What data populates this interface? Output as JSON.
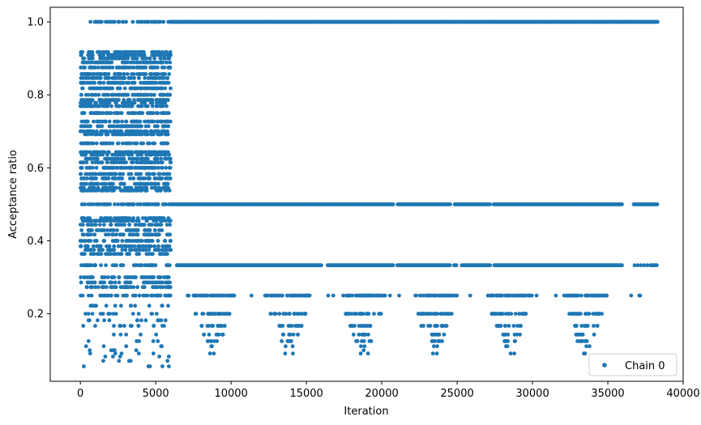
{
  "chart_data": {
    "type": "scatter",
    "title": "",
    "xlabel": "Iteration",
    "ylabel": "Acceptance ratio",
    "xlim": [
      -2000,
      40000
    ],
    "ylim": [
      0.015,
      1.04
    ],
    "xticks": [
      0,
      5000,
      10000,
      15000,
      20000,
      25000,
      30000,
      35000,
      40000
    ],
    "yticks": [
      0.2,
      0.4,
      0.6,
      0.8,
      1.0
    ],
    "ytick_labels": [
      "0.2",
      "0.4",
      "0.6",
      "0.8",
      "1.0"
    ],
    "grid": false,
    "legend_position": "bottom-right",
    "marker_color": "#1f77b4",
    "series": [
      {
        "name": "Chain 0",
        "x_range": [
          0,
          38300
        ],
        "phases": [
          {
            "x_range": [
              0,
              6000
            ],
            "bands": [
              {
                "y": 1.0,
                "sparse": true
              },
              {
                "y": 0.917
              },
              {
                "y": 0.909
              },
              {
                "y": 0.9
              },
              {
                "y": 0.889
              },
              {
                "y": 0.875
              },
              {
                "y": 0.857
              },
              {
                "y": 0.846
              },
              {
                "y": 0.833
              },
              {
                "y": 0.818
              },
              {
                "y": 0.8
              },
              {
                "y": 0.786
              },
              {
                "y": 0.778
              },
              {
                "y": 0.769
              },
              {
                "y": 0.75
              },
              {
                "y": 0.727
              },
              {
                "y": 0.714
              },
              {
                "y": 0.7
              },
              {
                "y": 0.692
              },
              {
                "y": 0.667
              },
              {
                "y": 0.643
              },
              {
                "y": 0.636
              },
              {
                "y": 0.625
              },
              {
                "y": 0.615
              },
              {
                "y": 0.6
              },
              {
                "y": 0.583
              },
              {
                "y": 0.571
              },
              {
                "y": 0.556
              },
              {
                "y": 0.545
              },
              {
                "y": 0.538
              },
              {
                "y": 0.5
              },
              {
                "y": 0.462
              },
              {
                "y": 0.455
              },
              {
                "y": 0.444
              },
              {
                "y": 0.429
              },
              {
                "y": 0.417
              },
              {
                "y": 0.4
              },
              {
                "y": 0.385
              },
              {
                "y": 0.375
              },
              {
                "y": 0.364
              },
              {
                "y": 0.333
              },
              {
                "y": 0.3
              },
              {
                "y": 0.286
              },
              {
                "y": 0.273
              },
              {
                "y": 0.25
              },
              {
                "y": 0.222
              },
              {
                "y": 0.2
              },
              {
                "y": 0.182
              },
              {
                "y": 0.167
              },
              {
                "y": 0.143
              },
              {
                "y": 0.125
              },
              {
                "y": 0.111
              },
              {
                "y": 0.1
              },
              {
                "y": 0.091
              },
              {
                "y": 0.083
              },
              {
                "y": 0.071
              },
              {
                "y": 0.056
              }
            ]
          },
          {
            "x_range": [
              6000,
              38300
            ],
            "bands": [
              {
                "y": 1.0,
                "coverage": "continuous"
              },
              {
                "y": 0.5,
                "coverage": "mostly-continuous"
              },
              {
                "y": 0.333,
                "coverage": "mostly-continuous"
              },
              {
                "y": 0.25,
                "coverage": "clustered"
              },
              {
                "y": 0.2,
                "coverage": "clustered"
              },
              {
                "y": 0.167,
                "coverage": "clustered"
              },
              {
                "y": 0.143,
                "coverage": "clustered"
              },
              {
                "y": 0.125,
                "coverage": "clustered"
              },
              {
                "y": 0.111,
                "coverage": "rare"
              },
              {
                "y": 0.1,
                "coverage": "rare"
              },
              {
                "y": 0.091,
                "coverage": "rare"
              }
            ],
            "cluster_centers": [
              8800,
              13800,
              18800,
              23500,
              28500,
              33500
            ],
            "cluster_width": 3000
          }
        ]
      }
    ]
  }
}
